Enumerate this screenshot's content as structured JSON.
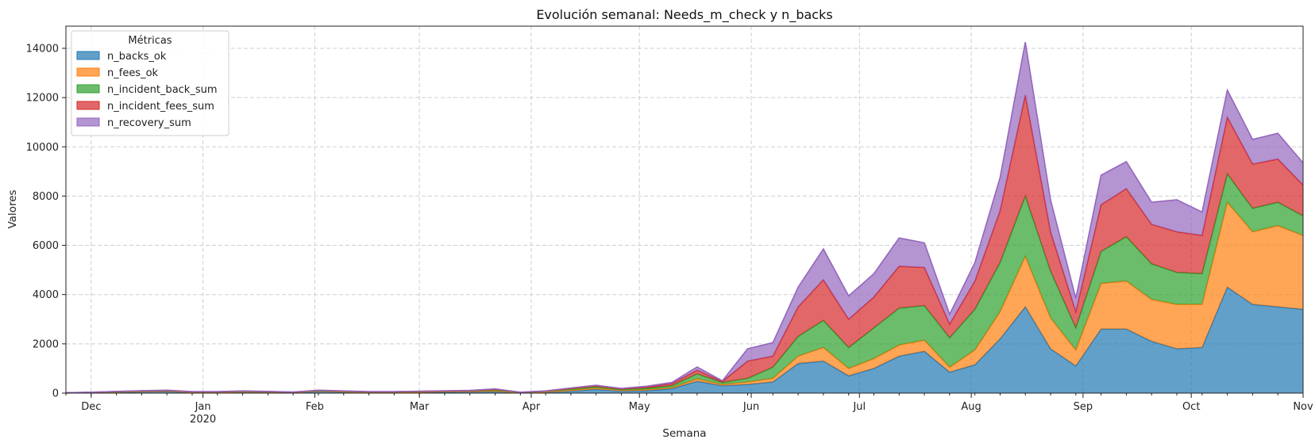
{
  "chart_data": {
    "type": "area",
    "stacked": true,
    "title": "Evolución semanal: Needs_m_check y n_backs",
    "xlabel": "Semana",
    "ylabel": "Valores",
    "ylim": [
      0,
      14900
    ],
    "yticks": [
      0,
      2000,
      4000,
      6000,
      8000,
      10000,
      12000,
      14000
    ],
    "xlim": [
      "2019-11-24",
      "2020-11-01"
    ],
    "xticks": [
      {
        "date": "2019-12-01",
        "label": "Dec",
        "sublabel": ""
      },
      {
        "date": "2020-01-01",
        "label": "Jan",
        "sublabel": "2020"
      },
      {
        "date": "2020-02-01",
        "label": "Feb",
        "sublabel": ""
      },
      {
        "date": "2020-03-01",
        "label": "Mar",
        "sublabel": ""
      },
      {
        "date": "2020-04-01",
        "label": "Apr",
        "sublabel": ""
      },
      {
        "date": "2020-05-01",
        "label": "May",
        "sublabel": ""
      },
      {
        "date": "2020-06-01",
        "label": "Jun",
        "sublabel": ""
      },
      {
        "date": "2020-07-01",
        "label": "Jul",
        "sublabel": ""
      },
      {
        "date": "2020-08-01",
        "label": "Aug",
        "sublabel": ""
      },
      {
        "date": "2020-09-01",
        "label": "Sep",
        "sublabel": ""
      },
      {
        "date": "2020-10-01",
        "label": "Oct",
        "sublabel": ""
      },
      {
        "date": "2020-11-01",
        "label": "Nov",
        "sublabel": ""
      }
    ],
    "grid": true,
    "legend": {
      "title": "Métricas",
      "placement": "top-left"
    },
    "x": [
      "2019-11-24",
      "2019-12-01",
      "2019-12-08",
      "2019-12-15",
      "2019-12-22",
      "2019-12-29",
      "2020-01-05",
      "2020-01-12",
      "2020-01-19",
      "2020-01-26",
      "2020-02-02",
      "2020-02-09",
      "2020-02-16",
      "2020-02-23",
      "2020-03-01",
      "2020-03-08",
      "2020-03-15",
      "2020-03-22",
      "2020-03-29",
      "2020-04-05",
      "2020-04-12",
      "2020-04-19",
      "2020-04-26",
      "2020-05-03",
      "2020-05-10",
      "2020-05-17",
      "2020-05-24",
      "2020-05-31",
      "2020-06-07",
      "2020-06-14",
      "2020-06-21",
      "2020-06-28",
      "2020-07-05",
      "2020-07-12",
      "2020-07-19",
      "2020-07-26",
      "2020-08-02",
      "2020-08-09",
      "2020-08-16",
      "2020-08-23",
      "2020-08-30",
      "2020-09-06",
      "2020-09-13",
      "2020-09-20",
      "2020-09-27",
      "2020-10-04",
      "2020-10-11",
      "2020-10-18",
      "2020-10-25",
      "2020-11-01"
    ],
    "series": [
      {
        "name": "n_backs_ok",
        "color": "#1f77b4",
        "values": [
          5,
          20,
          35,
          50,
          60,
          30,
          30,
          40,
          35,
          20,
          60,
          40,
          30,
          30,
          30,
          40,
          50,
          60,
          10,
          30,
          80,
          150,
          80,
          100,
          180,
          480,
          300,
          350,
          450,
          1200,
          1300,
          700,
          1000,
          1500,
          1700,
          850,
          1150,
          2200,
          3500,
          1800,
          1100,
          2600,
          2600,
          2100,
          1800,
          1850,
          4300,
          3600,
          3500,
          3400
        ]
      },
      {
        "name": "n_fees_ok",
        "color": "#ff7f0e",
        "values": [
          3,
          5,
          10,
          15,
          20,
          10,
          10,
          15,
          10,
          10,
          20,
          15,
          10,
          10,
          15,
          20,
          20,
          30,
          10,
          20,
          40,
          50,
          30,
          40,
          40,
          100,
          50,
          100,
          150,
          300,
          550,
          300,
          400,
          450,
          450,
          200,
          600,
          1100,
          2050,
          1250,
          650,
          1850,
          1950,
          1700,
          1800,
          1750,
          3450,
          2950,
          3300,
          3000
        ]
      },
      {
        "name": "n_incident_back_sum",
        "color": "#2ca02c",
        "values": [
          3,
          5,
          10,
          15,
          15,
          10,
          10,
          15,
          10,
          5,
          20,
          15,
          10,
          10,
          15,
          15,
          20,
          40,
          10,
          20,
          50,
          60,
          40,
          60,
          80,
          200,
          80,
          150,
          450,
          800,
          1100,
          850,
          1250,
          1500,
          1400,
          1200,
          1650,
          2000,
          2450,
          1900,
          900,
          1300,
          1800,
          1450,
          1300,
          1250,
          1150,
          950,
          950,
          800
        ]
      },
      {
        "name": "n_incident_fees_sum",
        "color": "#d62728",
        "values": [
          2,
          5,
          5,
          10,
          10,
          5,
          5,
          10,
          5,
          5,
          10,
          10,
          5,
          5,
          10,
          10,
          10,
          20,
          5,
          10,
          20,
          30,
          20,
          40,
          80,
          150,
          40,
          700,
          450,
          1200,
          1650,
          1150,
          1250,
          1700,
          1550,
          550,
          1150,
          2100,
          4100,
          1600,
          650,
          1900,
          1950,
          1600,
          1650,
          1550,
          2300,
          1800,
          1750,
          1250
        ]
      },
      {
        "name": "n_recovery_sum",
        "color": "#9467bd",
        "values": [
          2,
          5,
          10,
          10,
          15,
          5,
          5,
          10,
          10,
          5,
          10,
          10,
          5,
          5,
          10,
          10,
          10,
          20,
          5,
          10,
          20,
          30,
          20,
          40,
          50,
          130,
          30,
          500,
          550,
          800,
          1250,
          950,
          950,
          1150,
          1000,
          400,
          750,
          1350,
          2150,
          1300,
          550,
          1200,
          1100,
          900,
          1300,
          950,
          1100,
          1000,
          1050,
          900
        ]
      }
    ]
  }
}
